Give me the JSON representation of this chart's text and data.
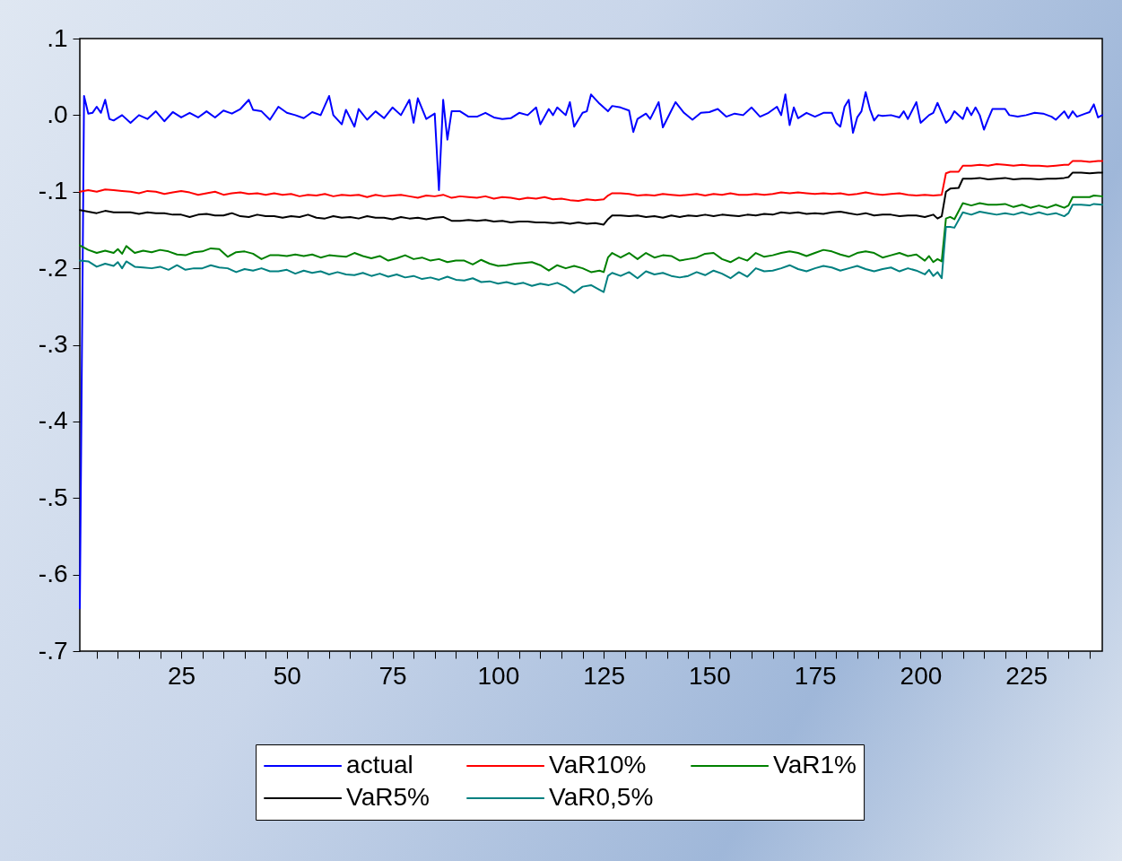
{
  "chart_data": {
    "type": "line",
    "xlim": [
      1,
      243
    ],
    "ylim": [
      -0.7,
      0.1
    ],
    "xticks": [
      {
        "value": 5,
        "label": null
      },
      {
        "value": 10,
        "label": null
      },
      {
        "value": 15,
        "label": null
      },
      {
        "value": 20,
        "label": null
      },
      25,
      {
        "value": 30,
        "label": null
      },
      {
        "value": 35,
        "label": null
      },
      {
        "value": 40,
        "label": null
      },
      {
        "value": 45,
        "label": null
      },
      50,
      {
        "value": 55,
        "label": null
      },
      {
        "value": 60,
        "label": null
      },
      {
        "value": 65,
        "label": null
      },
      {
        "value": 70,
        "label": null
      },
      75,
      {
        "value": 80,
        "label": null
      },
      {
        "value": 85,
        "label": null
      },
      {
        "value": 90,
        "label": null
      },
      {
        "value": 95,
        "label": null
      },
      100,
      {
        "value": 105,
        "label": null
      },
      {
        "value": 110,
        "label": null
      },
      {
        "value": 115,
        "label": null
      },
      {
        "value": 120,
        "label": null
      },
      125,
      {
        "value": 130,
        "label": null
      },
      {
        "value": 135,
        "label": null
      },
      {
        "value": 140,
        "label": null
      },
      {
        "value": 145,
        "label": null
      },
      150,
      {
        "value": 155,
        "label": null
      },
      {
        "value": 160,
        "label": null
      },
      {
        "value": 165,
        "label": null
      },
      {
        "value": 170,
        "label": null
      },
      175,
      {
        "value": 180,
        "label": null
      },
      {
        "value": 185,
        "label": null
      },
      {
        "value": 190,
        "label": null
      },
      {
        "value": 195,
        "label": null
      },
      200,
      {
        "value": 205,
        "label": null
      },
      {
        "value": 210,
        "label": null
      },
      {
        "value": 215,
        "label": null
      },
      {
        "value": 220,
        "label": null
      },
      225,
      {
        "value": 230,
        "label": null
      },
      {
        "value": 235,
        "label": null
      },
      {
        "value": 240,
        "label": null
      }
    ],
    "yticks": [
      {
        "value": 0.1,
        "label": ".1"
      },
      {
        "value": 0,
        "label": ".0"
      },
      {
        "value": -0.1,
        "label": "-.1"
      },
      {
        "value": -0.2,
        "label": "-.2"
      },
      {
        "value": -0.3,
        "label": "-.3"
      },
      {
        "value": -0.4,
        "label": "-.4"
      },
      {
        "value": -0.5,
        "label": "-.5"
      },
      {
        "value": -0.6,
        "label": "-.6"
      },
      {
        "value": -0.7,
        "label": "-.7"
      }
    ],
    "legend": "bottom",
    "series": [
      {
        "name": "actual",
        "color": "#0000ff",
        "x": [
          1,
          2,
          3,
          4,
          5,
          6,
          7,
          8,
          9,
          11,
          13,
          15,
          17,
          19,
          21,
          23,
          25,
          27,
          29,
          31,
          33,
          35,
          37,
          39,
          41,
          42,
          44,
          46,
          48,
          50,
          52,
          54,
          56,
          58,
          60,
          61,
          63,
          64,
          66,
          67,
          69,
          71,
          73,
          75,
          77,
          79,
          80,
          81,
          83,
          85,
          86,
          87,
          88,
          89,
          91,
          93,
          95,
          97,
          99,
          101,
          103,
          105,
          107,
          109,
          110,
          112,
          113,
          114,
          116,
          117,
          118,
          120,
          121,
          122,
          124,
          126,
          127,
          129,
          131,
          132,
          133,
          135,
          136,
          138,
          139,
          141,
          142,
          144,
          146,
          148,
          150,
          152,
          154,
          156,
          158,
          160,
          162,
          164,
          166,
          167,
          168,
          169,
          170,
          171,
          173,
          175,
          177,
          179,
          180,
          181,
          182,
          183,
          184,
          185,
          186,
          187,
          188,
          189,
          190,
          191,
          193,
          195,
          196,
          197,
          199,
          200,
          201,
          202,
          203,
          204,
          206,
          207,
          208,
          210,
          211,
          212,
          213,
          214,
          215,
          216,
          217,
          220,
          221,
          223,
          225,
          227,
          229,
          231,
          232,
          234,
          235,
          236,
          237,
          239,
          240,
          241,
          242,
          243
        ],
        "values": [
          -0.644,
          0.025,
          0.002,
          0.003,
          0.011,
          0.003,
          0.02,
          -0.005,
          -0.007,
          0.0,
          -0.01,
          0.0,
          -0.005,
          0.005,
          -0.008,
          0.004,
          -0.003,
          0.003,
          -0.003,
          0.005,
          -0.003,
          0.006,
          0.002,
          0.008,
          0.02,
          0.007,
          0.005,
          -0.006,
          0.011,
          0.003,
          0.0,
          -0.004,
          0.004,
          0.0,
          0.025,
          0.0,
          -0.012,
          0.007,
          -0.015,
          0.008,
          -0.006,
          0.005,
          -0.004,
          0.01,
          0.0,
          0.02,
          -0.01,
          0.022,
          -0.005,
          0.002,
          -0.098,
          0.02,
          -0.032,
          0.005,
          0.005,
          -0.002,
          -0.002,
          0.003,
          -0.003,
          -0.005,
          -0.004,
          0.003,
          0.0,
          0.01,
          -0.012,
          0.008,
          0.0,
          0.01,
          0.0,
          0.017,
          -0.015,
          0.003,
          0.005,
          0.027,
          0.015,
          0.005,
          0.012,
          0.01,
          0.006,
          -0.022,
          -0.005,
          0.002,
          -0.005,
          0.017,
          -0.016,
          0.006,
          0.017,
          0.003,
          -0.006,
          0.003,
          0.004,
          0.008,
          -0.002,
          0.002,
          0.0,
          0.01,
          -0.002,
          0.003,
          0.011,
          0.0,
          0.027,
          -0.013,
          0.01,
          -0.004,
          0.003,
          -0.002,
          0.003,
          0.003,
          -0.01,
          -0.015,
          0.011,
          0.02,
          -0.023,
          -0.003,
          0.005,
          0.03,
          0.008,
          -0.007,
          0.0,
          -0.001,
          0.0,
          -0.003,
          0.005,
          -0.005,
          0.017,
          -0.01,
          -0.005,
          0.0,
          0.003,
          0.016,
          -0.01,
          -0.005,
          0.005,
          -0.005,
          0.01,
          0.0,
          0.01,
          0.0,
          -0.019,
          -0.005,
          0.008,
          0.008,
          0.0,
          -0.002,
          0.0,
          0.003,
          0.002,
          -0.002,
          -0.006,
          0.005,
          -0.004,
          0.005,
          -0.002,
          0.002,
          0.004,
          0.014,
          -0.003,
          0.0
        ]
      },
      {
        "name": "VaR10%",
        "color": "#ff0000",
        "x": [
          1,
          3,
          5,
          7,
          9,
          11,
          13,
          15,
          17,
          19,
          21,
          23,
          25,
          27,
          29,
          31,
          33,
          35,
          37,
          39,
          41,
          43,
          45,
          47,
          49,
          51,
          53,
          55,
          57,
          59,
          61,
          63,
          65,
          67,
          69,
          71,
          73,
          75,
          77,
          79,
          81,
          83,
          85,
          87,
          89,
          91,
          93,
          95,
          97,
          99,
          101,
          103,
          105,
          107,
          109,
          111,
          113,
          115,
          117,
          119,
          121,
          123,
          125,
          126,
          127,
          129,
          131,
          133,
          135,
          137,
          139,
          141,
          143,
          145,
          147,
          149,
          151,
          153,
          155,
          157,
          159,
          161,
          163,
          165,
          167,
          169,
          171,
          173,
          175,
          177,
          179,
          181,
          183,
          185,
          187,
          189,
          191,
          193,
          195,
          197,
          199,
          201,
          203,
          205,
          206,
          207,
          209,
          210,
          212,
          214,
          216,
          218,
          220,
          222,
          224,
          226,
          228,
          230,
          232,
          234,
          235,
          236,
          238,
          240,
          242,
          243
        ],
        "values": [
          -0.1,
          -0.098,
          -0.1,
          -0.097,
          -0.098,
          -0.099,
          -0.1,
          -0.102,
          -0.099,
          -0.1,
          -0.103,
          -0.101,
          -0.099,
          -0.101,
          -0.104,
          -0.102,
          -0.1,
          -0.104,
          -0.102,
          -0.101,
          -0.103,
          -0.102,
          -0.104,
          -0.102,
          -0.104,
          -0.103,
          -0.106,
          -0.104,
          -0.105,
          -0.103,
          -0.106,
          -0.104,
          -0.105,
          -0.104,
          -0.107,
          -0.104,
          -0.106,
          -0.105,
          -0.104,
          -0.106,
          -0.108,
          -0.105,
          -0.106,
          -0.104,
          -0.108,
          -0.106,
          -0.107,
          -0.108,
          -0.106,
          -0.109,
          -0.107,
          -0.108,
          -0.11,
          -0.108,
          -0.109,
          -0.107,
          -0.11,
          -0.109,
          -0.111,
          -0.112,
          -0.11,
          -0.111,
          -0.11,
          -0.105,
          -0.102,
          -0.102,
          -0.103,
          -0.105,
          -0.104,
          -0.105,
          -0.103,
          -0.104,
          -0.105,
          -0.104,
          -0.103,
          -0.105,
          -0.103,
          -0.104,
          -0.102,
          -0.104,
          -0.104,
          -0.103,
          -0.104,
          -0.103,
          -0.101,
          -0.102,
          -0.101,
          -0.102,
          -0.103,
          -0.102,
          -0.103,
          -0.102,
          -0.104,
          -0.103,
          -0.101,
          -0.103,
          -0.104,
          -0.103,
          -0.102,
          -0.104,
          -0.105,
          -0.104,
          -0.105,
          -0.104,
          -0.076,
          -0.074,
          -0.074,
          -0.066,
          -0.066,
          -0.065,
          -0.066,
          -0.064,
          -0.065,
          -0.066,
          -0.065,
          -0.066,
          -0.066,
          -0.067,
          -0.066,
          -0.065,
          -0.065,
          -0.06,
          -0.06,
          -0.061,
          -0.06,
          -0.06
        ]
      },
      {
        "name": "VaR1%",
        "color": "#008000",
        "x": [
          1,
          3,
          5,
          7,
          9,
          10,
          11,
          12,
          14,
          16,
          18,
          20,
          22,
          24,
          26,
          28,
          30,
          32,
          34,
          36,
          38,
          40,
          42,
          44,
          46,
          48,
          50,
          52,
          54,
          56,
          58,
          60,
          62,
          64,
          66,
          68,
          70,
          72,
          74,
          76,
          78,
          80,
          82,
          84,
          86,
          88,
          90,
          92,
          94,
          96,
          98,
          100,
          102,
          104,
          106,
          108,
          110,
          112,
          114,
          116,
          118,
          120,
          122,
          124,
          125,
          126,
          127,
          129,
          131,
          133,
          135,
          137,
          139,
          141,
          143,
          145,
          147,
          149,
          151,
          153,
          155,
          157,
          159,
          161,
          163,
          165,
          167,
          169,
          171,
          173,
          175,
          177,
          179,
          181,
          183,
          185,
          187,
          189,
          191,
          193,
          195,
          197,
          199,
          201,
          202,
          203,
          204,
          205,
          206,
          207,
          208,
          210,
          212,
          214,
          216,
          218,
          220,
          222,
          224,
          226,
          228,
          230,
          232,
          234,
          235,
          236,
          238,
          240,
          241,
          243
        ],
        "values": [
          -0.17,
          -0.176,
          -0.18,
          -0.177,
          -0.18,
          -0.175,
          -0.181,
          -0.171,
          -0.18,
          -0.177,
          -0.179,
          -0.176,
          -0.178,
          -0.182,
          -0.183,
          -0.179,
          -0.178,
          -0.174,
          -0.175,
          -0.185,
          -0.179,
          -0.178,
          -0.181,
          -0.188,
          -0.183,
          -0.183,
          -0.184,
          -0.182,
          -0.184,
          -0.182,
          -0.186,
          -0.183,
          -0.184,
          -0.185,
          -0.18,
          -0.184,
          -0.187,
          -0.184,
          -0.19,
          -0.187,
          -0.183,
          -0.188,
          -0.186,
          -0.19,
          -0.188,
          -0.192,
          -0.19,
          -0.19,
          -0.195,
          -0.189,
          -0.194,
          -0.197,
          -0.196,
          -0.194,
          -0.193,
          -0.192,
          -0.196,
          -0.203,
          -0.196,
          -0.2,
          -0.197,
          -0.2,
          -0.205,
          -0.203,
          -0.205,
          -0.186,
          -0.18,
          -0.186,
          -0.18,
          -0.188,
          -0.18,
          -0.186,
          -0.183,
          -0.184,
          -0.19,
          -0.188,
          -0.186,
          -0.181,
          -0.18,
          -0.188,
          -0.192,
          -0.186,
          -0.19,
          -0.18,
          -0.185,
          -0.183,
          -0.18,
          -0.178,
          -0.18,
          -0.184,
          -0.18,
          -0.176,
          -0.178,
          -0.182,
          -0.185,
          -0.18,
          -0.178,
          -0.18,
          -0.186,
          -0.183,
          -0.18,
          -0.184,
          -0.182,
          -0.19,
          -0.184,
          -0.192,
          -0.188,
          -0.191,
          -0.135,
          -0.133,
          -0.136,
          -0.115,
          -0.118,
          -0.115,
          -0.117,
          -0.117,
          -0.116,
          -0.12,
          -0.117,
          -0.121,
          -0.118,
          -0.121,
          -0.117,
          -0.121,
          -0.118,
          -0.107,
          -0.107,
          -0.107,
          -0.105,
          -0.106
        ]
      },
      {
        "name": "VaR5%",
        "color": "#000000",
        "x": [
          1,
          3,
          5,
          7,
          9,
          11,
          13,
          15,
          17,
          19,
          21,
          23,
          25,
          27,
          29,
          31,
          33,
          35,
          37,
          39,
          41,
          43,
          45,
          47,
          49,
          51,
          53,
          55,
          57,
          59,
          61,
          63,
          65,
          67,
          69,
          71,
          73,
          75,
          77,
          79,
          81,
          83,
          85,
          87,
          89,
          91,
          93,
          95,
          97,
          99,
          101,
          103,
          105,
          107,
          109,
          111,
          113,
          115,
          117,
          119,
          121,
          123,
          125,
          126,
          127,
          129,
          131,
          133,
          135,
          137,
          139,
          141,
          143,
          145,
          147,
          149,
          151,
          153,
          155,
          157,
          159,
          161,
          163,
          165,
          167,
          169,
          171,
          173,
          175,
          177,
          179,
          181,
          183,
          185,
          187,
          189,
          191,
          193,
          195,
          197,
          199,
          201,
          203,
          204,
          205,
          206,
          207,
          209,
          210,
          212,
          214,
          216,
          218,
          220,
          222,
          224,
          226,
          228,
          230,
          232,
          234,
          235,
          236,
          238,
          240,
          242,
          243
        ],
        "values": [
          -0.124,
          -0.126,
          -0.128,
          -0.125,
          -0.127,
          -0.127,
          -0.127,
          -0.129,
          -0.127,
          -0.128,
          -0.128,
          -0.13,
          -0.13,
          -0.133,
          -0.13,
          -0.129,
          -0.131,
          -0.131,
          -0.128,
          -0.132,
          -0.133,
          -0.13,
          -0.132,
          -0.132,
          -0.134,
          -0.132,
          -0.133,
          -0.13,
          -0.134,
          -0.135,
          -0.132,
          -0.134,
          -0.133,
          -0.135,
          -0.132,
          -0.134,
          -0.134,
          -0.136,
          -0.133,
          -0.135,
          -0.134,
          -0.136,
          -0.134,
          -0.133,
          -0.138,
          -0.138,
          -0.137,
          -0.138,
          -0.137,
          -0.139,
          -0.138,
          -0.14,
          -0.139,
          -0.139,
          -0.14,
          -0.14,
          -0.141,
          -0.14,
          -0.142,
          -0.14,
          -0.142,
          -0.141,
          -0.143,
          -0.136,
          -0.131,
          -0.131,
          -0.132,
          -0.131,
          -0.133,
          -0.132,
          -0.134,
          -0.131,
          -0.133,
          -0.131,
          -0.132,
          -0.13,
          -0.132,
          -0.13,
          -0.131,
          -0.132,
          -0.13,
          -0.131,
          -0.129,
          -0.13,
          -0.127,
          -0.128,
          -0.127,
          -0.129,
          -0.128,
          -0.129,
          -0.127,
          -0.126,
          -0.128,
          -0.13,
          -0.128,
          -0.131,
          -0.13,
          -0.13,
          -0.132,
          -0.131,
          -0.131,
          -0.133,
          -0.13,
          -0.135,
          -0.132,
          -0.1,
          -0.096,
          -0.095,
          -0.083,
          -0.083,
          -0.082,
          -0.084,
          -0.083,
          -0.082,
          -0.084,
          -0.083,
          -0.083,
          -0.084,
          -0.083,
          -0.083,
          -0.082,
          -0.081,
          -0.075,
          -0.075,
          -0.076,
          -0.075,
          -0.075
        ]
      },
      {
        "name": "VaR0,5%",
        "color": "#008080",
        "x": [
          1,
          3,
          5,
          7,
          9,
          10,
          11,
          12,
          14,
          16,
          18,
          20,
          22,
          24,
          26,
          28,
          30,
          32,
          34,
          36,
          38,
          40,
          42,
          44,
          46,
          48,
          50,
          52,
          54,
          56,
          58,
          60,
          62,
          64,
          66,
          68,
          70,
          72,
          74,
          76,
          78,
          80,
          82,
          84,
          86,
          88,
          90,
          92,
          94,
          96,
          98,
          100,
          102,
          104,
          106,
          108,
          110,
          112,
          114,
          116,
          118,
          120,
          122,
          124,
          125,
          126,
          127,
          129,
          131,
          133,
          135,
          137,
          139,
          141,
          143,
          145,
          147,
          149,
          151,
          153,
          155,
          157,
          159,
          161,
          163,
          165,
          167,
          169,
          171,
          173,
          175,
          177,
          179,
          181,
          183,
          185,
          187,
          189,
          191,
          193,
          195,
          197,
          199,
          201,
          202,
          203,
          204,
          205,
          206,
          207,
          208,
          210,
          212,
          214,
          216,
          218,
          220,
          222,
          224,
          226,
          228,
          230,
          232,
          234,
          235,
          236,
          238,
          240,
          241,
          243
        ],
        "values": [
          -0.19,
          -0.191,
          -0.198,
          -0.194,
          -0.197,
          -0.192,
          -0.2,
          -0.191,
          -0.198,
          -0.199,
          -0.2,
          -0.198,
          -0.202,
          -0.196,
          -0.202,
          -0.2,
          -0.2,
          -0.196,
          -0.199,
          -0.2,
          -0.205,
          -0.201,
          -0.203,
          -0.2,
          -0.204,
          -0.204,
          -0.202,
          -0.207,
          -0.203,
          -0.206,
          -0.204,
          -0.208,
          -0.205,
          -0.208,
          -0.209,
          -0.206,
          -0.21,
          -0.207,
          -0.211,
          -0.208,
          -0.212,
          -0.21,
          -0.214,
          -0.212,
          -0.215,
          -0.211,
          -0.215,
          -0.216,
          -0.213,
          -0.218,
          -0.217,
          -0.22,
          -0.218,
          -0.221,
          -0.219,
          -0.223,
          -0.22,
          -0.222,
          -0.219,
          -0.224,
          -0.232,
          -0.224,
          -0.222,
          -0.228,
          -0.231,
          -0.21,
          -0.206,
          -0.21,
          -0.205,
          -0.213,
          -0.204,
          -0.208,
          -0.206,
          -0.21,
          -0.212,
          -0.21,
          -0.205,
          -0.209,
          -0.203,
          -0.207,
          -0.213,
          -0.205,
          -0.211,
          -0.2,
          -0.204,
          -0.203,
          -0.2,
          -0.196,
          -0.201,
          -0.204,
          -0.2,
          -0.197,
          -0.199,
          -0.203,
          -0.2,
          -0.197,
          -0.201,
          -0.204,
          -0.201,
          -0.199,
          -0.204,
          -0.2,
          -0.203,
          -0.208,
          -0.202,
          -0.21,
          -0.205,
          -0.213,
          -0.146,
          -0.146,
          -0.147,
          -0.127,
          -0.13,
          -0.126,
          -0.128,
          -0.13,
          -0.128,
          -0.13,
          -0.127,
          -0.13,
          -0.127,
          -0.13,
          -0.128,
          -0.132,
          -0.128,
          -0.117,
          -0.117,
          -0.118,
          -0.116,
          -0.117
        ]
      }
    ]
  }
}
